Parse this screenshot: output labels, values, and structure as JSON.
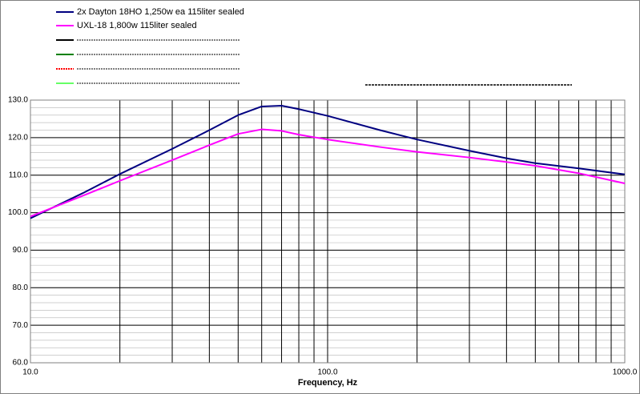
{
  "chart_data": {
    "type": "line",
    "x_label": "Frequency, Hz",
    "x": [
      10,
      15,
      20,
      30,
      40,
      50,
      60,
      70,
      80,
      100,
      150,
      200,
      300,
      400,
      500,
      700,
      1000
    ],
    "series": [
      {
        "name": "2x Dayton 18HO 1,250w ea 115liter sealed",
        "color": "#000080",
        "values": [
          98.5,
          105.2,
          110.3,
          117,
          122,
          126,
          128.3,
          128.5,
          127.6,
          125.8,
          122,
          119.5,
          116.5,
          114.5,
          113.2,
          111.8,
          110.2
        ]
      },
      {
        "name": "UXL-18 1,800w 115liter sealed",
        "color": "#ff00ff",
        "values": [
          99,
          104.5,
          108.5,
          114,
          118,
          121,
          122.2,
          121.8,
          120.8,
          119.5,
          117.5,
          116.2,
          114.7,
          113.5,
          112.5,
          110.5,
          107.8
        ]
      }
    ],
    "xscale": "log",
    "xlim": [
      10,
      1000
    ],
    "xticks": [
      {
        "value": 10,
        "label": "10.0"
      },
      {
        "value": 100,
        "label": "100.0"
      },
      {
        "value": 1000,
        "label": "1000.0"
      }
    ],
    "ylim": [
      60,
      130
    ],
    "yticks": [
      {
        "value": 60,
        "label": "60.0"
      },
      {
        "value": 70,
        "label": "70.0"
      },
      {
        "value": 80,
        "label": "80.0"
      },
      {
        "value": 90,
        "label": "90.0"
      },
      {
        "value": 100,
        "label": "100.0"
      },
      {
        "value": 110,
        "label": "110.0"
      },
      {
        "value": 120,
        "label": "120.0"
      },
      {
        "value": 130,
        "label": "130.0"
      }
    ],
    "grid": true
  }
}
